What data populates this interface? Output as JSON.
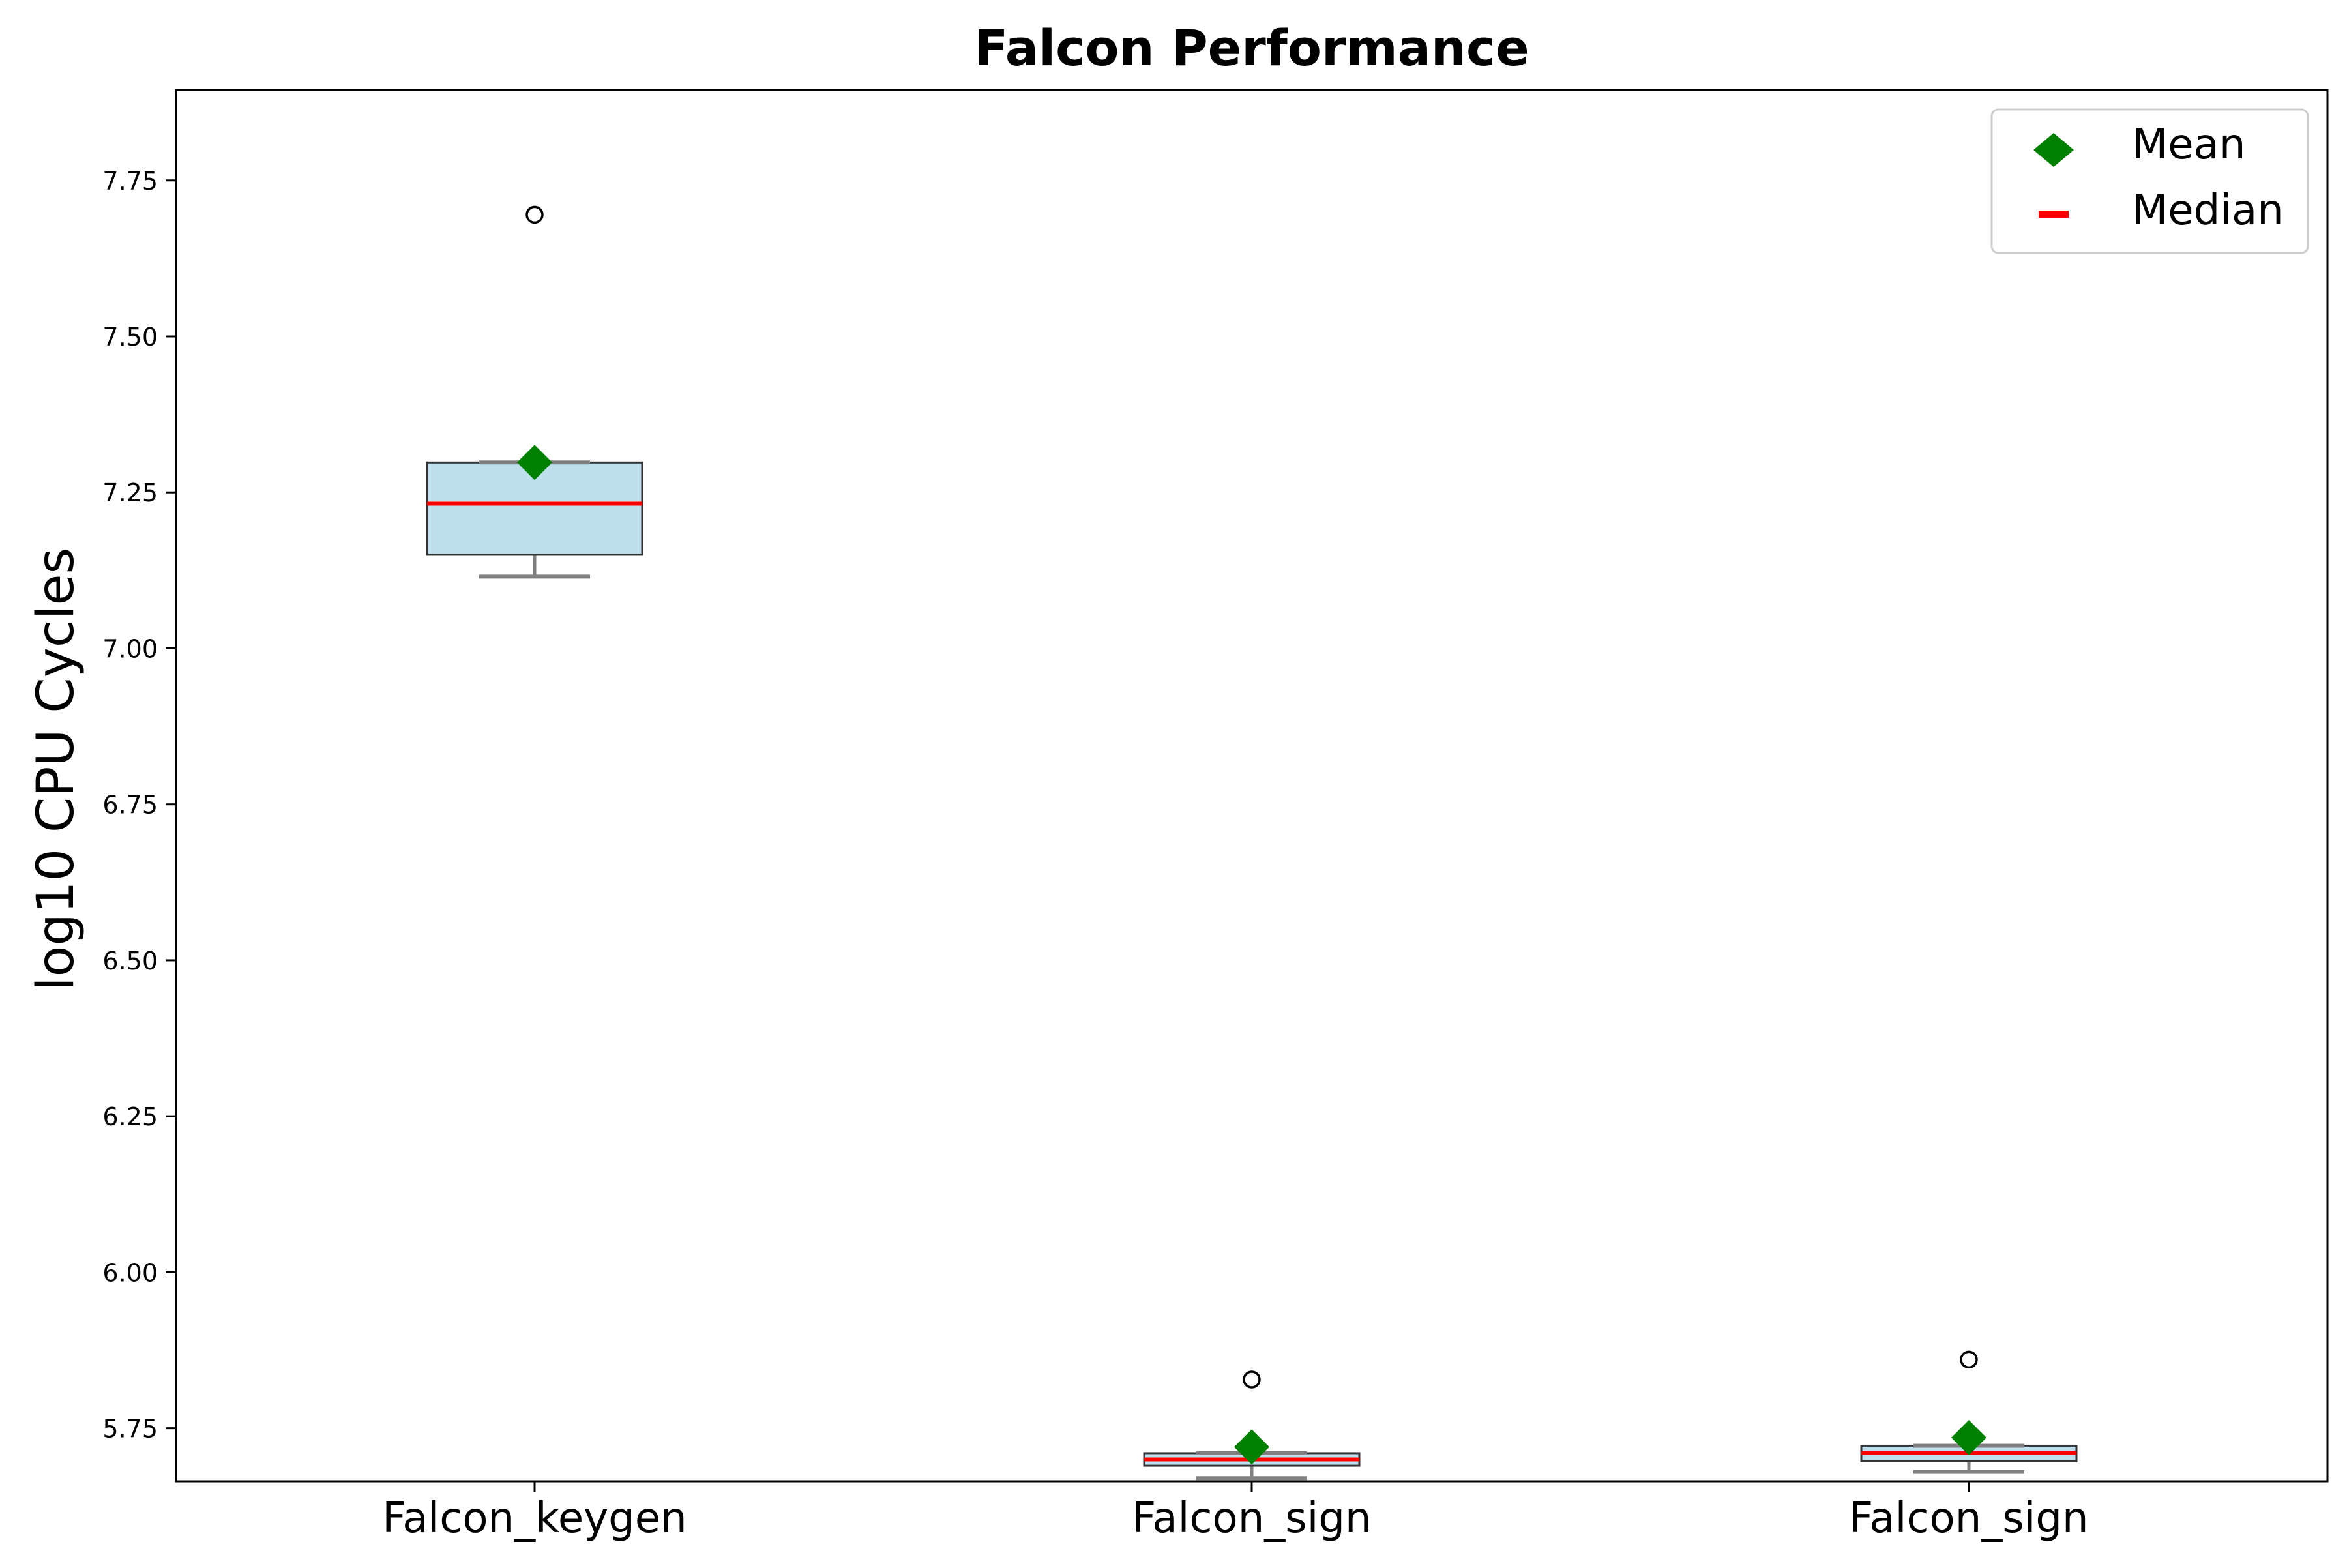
{
  "chart_data": {
    "type": "box",
    "title": "Falcon Performance",
    "xlabel": "",
    "ylabel": "log10 CPU Cycles",
    "ylim": [
      5.665,
      7.895
    ],
    "yticks": [
      5.75,
      6.0,
      6.25,
      6.5,
      6.75,
      7.0,
      7.25,
      7.5,
      7.75
    ],
    "ytick_labels": [
      "5.75",
      "6.00",
      "6.25",
      "6.50",
      "6.75",
      "7.00",
      "7.25",
      "7.50",
      "7.75"
    ],
    "categories": [
      "Falcon_keygen",
      "Falcon_sign",
      "Falcon_sign"
    ],
    "boxes": [
      {
        "category": "Falcon_keygen",
        "whisker_low": 7.115,
        "q1": 7.15,
        "median": 7.232,
        "q3": 7.298,
        "whisker_high": 7.298,
        "mean": 7.298,
        "outliers": [
          7.695
        ],
        "fill": "#bde0ec"
      },
      {
        "category": "Falcon_sign",
        "whisker_low": 5.67,
        "q1": 5.69,
        "median": 5.7,
        "q3": 5.71,
        "whisker_high": 5.71,
        "mean": 5.72,
        "outliers": [
          5.828
        ],
        "fill": "#bde0ec"
      },
      {
        "category": "Falcon_sign",
        "whisker_low": 5.68,
        "q1": 5.697,
        "median": 5.71,
        "q3": 5.722,
        "whisker_high": 5.722,
        "mean": 5.735,
        "outliers": [
          5.86
        ],
        "fill": "#bde0ec"
      }
    ],
    "legend": {
      "position": "upper right",
      "entries": [
        {
          "label": "Mean",
          "marker": "diamond",
          "color": "#008000"
        },
        {
          "label": "Median",
          "marker": "line",
          "color": "#ff0000"
        }
      ]
    },
    "colors": {
      "mean": "#008000",
      "median": "#ff0000",
      "whisker": "#808080",
      "box_edge": "#333333",
      "box_fill": "#bde0ec"
    },
    "grid": false
  }
}
